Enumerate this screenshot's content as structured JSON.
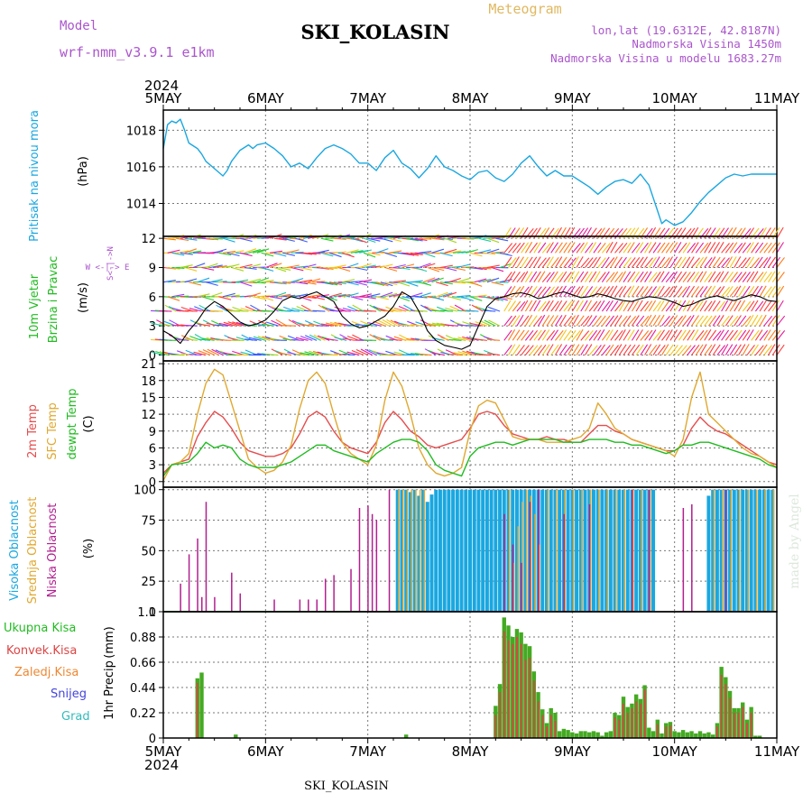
{
  "header": {
    "model_label": "Model",
    "model_name": "wrf-nmm_v3.9.1  e1km",
    "station": "SKI_KOLASIN",
    "chart_kind": "Meteogram",
    "lonlat": "lon,lat (19.6312E, 42.8187N)",
    "elevation": "Nadmorska Visina 1450m",
    "model_elevation": "Nadmorska Visina u modelu 1683.27m",
    "footer_station": "SKI_KOLASIN",
    "credit": "made by Angel"
  },
  "colors": {
    "pressure": "#1aa7e0",
    "temp": "#e64d4d",
    "sfc_temp": "#e0a830",
    "dewpoint": "#22bb22",
    "cloud_high": "#1aa7e0",
    "cloud_mid": "#e0a830",
    "cloud_low": "#b21f8f",
    "precip_total": "#44aa22",
    "precip_conv": "#dd4444",
    "precip_strat": "#ee8833",
    "snow": "#4444dd",
    "graupel": "#33bbbb",
    "wind_label": "#22bb22",
    "compass": "#aa55cc"
  },
  "chart_data": [
    {
      "id": "pressure",
      "type": "line",
      "ylabel_1": "Pritisak na nivou mora",
      "ylabel_unit": "(hPa)",
      "ylim": [
        1012.2,
        1019.1
      ],
      "yticks": [
        "1018",
        "1016",
        "1014"
      ],
      "ytick_values": [
        1018,
        1016,
        1014
      ],
      "x_range_hours": [
        0,
        144
      ],
      "x": [
        0,
        1,
        2,
        3,
        4,
        5,
        6,
        8,
        9,
        10,
        12,
        14,
        15,
        16,
        18,
        20,
        21,
        22,
        24,
        26,
        28,
        30,
        32,
        34,
        36,
        38,
        40,
        42,
        44,
        46,
        48,
        50,
        52,
        54,
        56,
        58,
        60,
        62,
        64,
        66,
        68,
        70,
        72,
        74,
        76,
        78,
        80,
        82,
        84,
        86,
        88,
        90,
        92,
        94,
        96,
        98,
        100,
        102,
        104,
        106,
        108,
        110,
        112,
        114,
        116,
        117,
        118,
        120,
        122,
        124,
        126,
        128,
        130,
        132,
        134,
        136,
        138,
        140,
        142,
        144
      ],
      "values": [
        1017.0,
        1018.3,
        1018.5,
        1018.4,
        1018.6,
        1018.0,
        1017.3,
        1017.0,
        1016.7,
        1016.3,
        1015.9,
        1015.5,
        1015.8,
        1016.3,
        1016.9,
        1017.2,
        1017.0,
        1017.2,
        1017.3,
        1017.0,
        1016.6,
        1016.0,
        1016.2,
        1015.9,
        1016.5,
        1017.0,
        1017.2,
        1017.0,
        1016.7,
        1016.2,
        1016.2,
        1015.8,
        1016.5,
        1016.9,
        1016.2,
        1015.9,
        1015.4,
        1015.9,
        1016.6,
        1016.0,
        1015.8,
        1015.5,
        1015.3,
        1015.7,
        1015.8,
        1015.4,
        1015.2,
        1015.6,
        1016.2,
        1016.6,
        1016.0,
        1015.5,
        1015.8,
        1015.5,
        1015.5,
        1015.2,
        1014.9,
        1014.5,
        1014.9,
        1015.2,
        1015.3,
        1015.1,
        1015.6,
        1015.0,
        1013.6,
        1012.9,
        1013.1,
        1012.8,
        1013.0,
        1013.5,
        1014.1,
        1014.6,
        1015.0,
        1015.4,
        1015.6,
        1015.5,
        1015.6,
        1015.6,
        1015.6,
        1015.6
      ]
    },
    {
      "id": "wind",
      "type": "line",
      "ylabel_1": "10m Vjetar",
      "ylabel_2": "Brzina i Pravac",
      "ylabel_unit": "(m/s)",
      "compass": "W <-|-> E",
      "compass_v": "S<-|->N",
      "ylim": [
        -0.6,
        12.2
      ],
      "yticks": [
        "12",
        "9",
        "6",
        "3",
        "0"
      ],
      "ytick_values": [
        12,
        9,
        6,
        3,
        0
      ],
      "speed_x": [
        0,
        2,
        4,
        6,
        8,
        10,
        12,
        14,
        16,
        18,
        20,
        22,
        24,
        26,
        28,
        30,
        32,
        34,
        36,
        38,
        40,
        42,
        44,
        46,
        48,
        50,
        52,
        54,
        56,
        58,
        60,
        62,
        64,
        66,
        68,
        70,
        72,
        74,
        76,
        78,
        80,
        82,
        84,
        86,
        88,
        90,
        92,
        94,
        96,
        98,
        100,
        102,
        104,
        106,
        108,
        110,
        112,
        114,
        116,
        118,
        120,
        122,
        124,
        126,
        128,
        130,
        132,
        134,
        136,
        138,
        140,
        142,
        144
      ],
      "speed_values": [
        2.5,
        2.0,
        1.2,
        2.5,
        3.5,
        4.8,
        5.5,
        5.0,
        4.2,
        3.4,
        3.0,
        3.2,
        3.6,
        4.5,
        5.6,
        6.0,
        5.8,
        6.2,
        6.5,
        6.0,
        5.5,
        4.0,
        3.2,
        2.8,
        3.0,
        3.5,
        4.0,
        5.0,
        6.5,
        6.0,
        4.5,
        2.5,
        1.5,
        1.0,
        0.8,
        0.6,
        1.0,
        3.0,
        5.0,
        5.8,
        6.0,
        6.3,
        6.4,
        6.2,
        5.8,
        6.0,
        6.3,
        6.5,
        6.2,
        5.9,
        6.0,
        6.3,
        6.1,
        5.8,
        5.6,
        5.5,
        5.8,
        6.0,
        5.9,
        5.7,
        5.4,
        5.0,
        5.2,
        5.6,
        5.9,
        6.1,
        5.8,
        5.6,
        5.9,
        6.2,
        6.0,
        5.6,
        5.5
      ]
    },
    {
      "id": "temperature",
      "type": "line",
      "ylabel_1": "2m Temp",
      "ylabel_2": "SFC Temp",
      "ylabel_3": "dewpt Temp",
      "ylabel_unit": "(C)",
      "ylim": [
        -1,
        21.5
      ],
      "yticks": [
        "21",
        "18",
        "15",
        "12",
        "9",
        "6",
        "3",
        "0"
      ],
      "ytick_values": [
        21,
        18,
        15,
        12,
        9,
        6,
        3,
        0
      ],
      "x": [
        0,
        2,
        4,
        6,
        8,
        10,
        12,
        14,
        16,
        18,
        20,
        22,
        24,
        26,
        28,
        30,
        32,
        34,
        36,
        38,
        40,
        42,
        44,
        46,
        48,
        50,
        52,
        54,
        56,
        58,
        60,
        62,
        64,
        66,
        68,
        70,
        72,
        74,
        76,
        78,
        80,
        82,
        84,
        86,
        88,
        90,
        92,
        94,
        96,
        98,
        100,
        102,
        104,
        106,
        108,
        110,
        112,
        114,
        116,
        118,
        120,
        122,
        124,
        126,
        128,
        130,
        132,
        134,
        136,
        138,
        140,
        142,
        144
      ],
      "series": [
        {
          "name": "2m Temp",
          "color_key": "temp",
          "values": [
            1.5,
            3.0,
            3.5,
            4.0,
            8.0,
            10.5,
            12.5,
            11.5,
            9.5,
            7.0,
            5.5,
            5.0,
            4.5,
            4.5,
            5.0,
            6.0,
            8.5,
            11.5,
            12.5,
            11.5,
            9.0,
            7.0,
            6.0,
            5.5,
            5.0,
            7.0,
            10.5,
            12.5,
            11.0,
            9.0,
            8.0,
            6.5,
            6.0,
            6.5,
            7.0,
            7.5,
            9.5,
            12.0,
            12.5,
            12.0,
            10.0,
            8.5,
            8.0,
            7.5,
            7.5,
            8.0,
            7.5,
            7.5,
            7.0,
            7.0,
            8.5,
            10.0,
            10.0,
            9.0,
            8.5,
            7.5,
            7.0,
            6.5,
            6.0,
            5.5,
            5.5,
            6.5,
            9.5,
            11.5,
            10.0,
            9.0,
            8.5,
            7.5,
            6.5,
            5.5,
            4.5,
            3.5,
            3.0
          ]
        },
        {
          "name": "SFC Temp",
          "color_key": "sfc_temp",
          "values": [
            0.2,
            3.0,
            3.5,
            5.0,
            12.0,
            17.5,
            20.0,
            19.0,
            14.0,
            9.0,
            4.0,
            2.5,
            1.5,
            2.0,
            3.5,
            6.5,
            13.0,
            18.0,
            19.5,
            17.5,
            12.0,
            7.0,
            5.0,
            4.0,
            3.0,
            6.5,
            14.5,
            19.5,
            17.0,
            12.0,
            6.0,
            3.0,
            1.5,
            1.0,
            1.5,
            2.5,
            9.0,
            13.5,
            14.5,
            14.0,
            11.0,
            8.0,
            7.5,
            7.5,
            7.5,
            7.0,
            7.0,
            7.0,
            7.5,
            8.0,
            9.5,
            14.0,
            12.0,
            9.5,
            8.5,
            7.5,
            7.0,
            6.5,
            6.0,
            5.5,
            4.5,
            7.5,
            15.0,
            19.5,
            12.0,
            10.5,
            9.0,
            7.5,
            6.0,
            5.0,
            4.5,
            3.5,
            2.5
          ]
        },
        {
          "name": "dewpt Temp",
          "color_key": "dewpoint",
          "values": [
            1.0,
            3.0,
            3.2,
            3.5,
            5.0,
            7.0,
            6.0,
            6.5,
            6.0,
            4.0,
            3.0,
            2.5,
            2.5,
            2.5,
            3.0,
            3.5,
            4.5,
            5.5,
            6.5,
            6.5,
            5.5,
            5.0,
            4.5,
            4.0,
            3.5,
            5.0,
            6.0,
            7.0,
            7.5,
            7.5,
            7.0,
            5.5,
            3.0,
            2.0,
            1.5,
            1.0,
            4.5,
            6.0,
            6.5,
            7.0,
            7.0,
            6.5,
            7.0,
            7.5,
            7.5,
            7.5,
            7.5,
            7.0,
            7.0,
            7.0,
            7.5,
            7.5,
            7.5,
            7.0,
            7.0,
            6.5,
            6.5,
            6.0,
            5.5,
            5.0,
            5.5,
            6.5,
            6.5,
            7.0,
            7.0,
            6.5,
            6.0,
            5.5,
            5.0,
            4.5,
            4.0,
            3.0,
            2.5
          ]
        }
      ]
    },
    {
      "id": "clouds",
      "type": "bar",
      "ylabel_1": "Visoka Oblacnost",
      "ylabel_2": "Srednja Oblacnost",
      "ylabel_3": "Niska Oblacnost",
      "ylabel_unit": "(%)",
      "ylim": [
        0,
        102
      ],
      "yticks": [
        "100",
        "75",
        "50",
        "25",
        "0"
      ],
      "ytick_values": [
        100,
        75,
        50,
        25,
        0
      ],
      "high_x": [
        55,
        56,
        57,
        58,
        59,
        60,
        61,
        62,
        63,
        64,
        65,
        66,
        67,
        68,
        69,
        70,
        71,
        72,
        73,
        74,
        75,
        76,
        77,
        78,
        79,
        80,
        81,
        82,
        83,
        84,
        85,
        86,
        87,
        88,
        89,
        90,
        91,
        92,
        93,
        94,
        95,
        96,
        97,
        98,
        99,
        100,
        101,
        102,
        103,
        104,
        105,
        106,
        107,
        108,
        109,
        110,
        111,
        112,
        113,
        114,
        115,
        128,
        129,
        130,
        131,
        132,
        133,
        134,
        135,
        136,
        137,
        138,
        139,
        140,
        141,
        142,
        143
      ],
      "high_values": [
        100,
        100,
        100,
        98,
        100,
        95,
        100,
        90,
        96,
        100,
        100,
        100,
        100,
        100,
        100,
        100,
        100,
        100,
        100,
        100,
        100,
        100,
        100,
        100,
        100,
        100,
        100,
        100,
        100,
        100,
        100,
        100,
        100,
        100,
        100,
        100,
        100,
        100,
        100,
        100,
        100,
        100,
        100,
        100,
        100,
        100,
        100,
        100,
        100,
        100,
        100,
        100,
        100,
        100,
        100,
        100,
        100,
        100,
        100,
        100,
        100,
        95,
        100,
        100,
        100,
        100,
        100,
        100,
        100,
        100,
        100,
        100,
        100,
        100,
        100,
        100,
        100
      ],
      "mid_x": [
        55,
        56,
        57,
        58,
        59,
        60,
        61,
        81,
        82,
        83,
        84,
        85,
        86,
        87,
        88,
        90,
        92,
        94,
        96,
        98,
        100,
        102,
        104,
        106,
        108,
        110,
        112,
        114,
        129,
        131,
        133,
        135,
        137,
        139,
        141,
        143
      ],
      "mid_values": [
        100,
        100,
        100,
        100,
        100,
        100,
        100,
        100,
        40,
        70,
        90,
        100,
        95,
        80,
        55,
        100,
        100,
        100,
        100,
        100,
        100,
        100,
        100,
        100,
        100,
        100,
        100,
        100,
        100,
        100,
        100,
        100,
        100,
        100,
        100,
        100
      ],
      "low_x": [
        4,
        6,
        8,
        9,
        10,
        12,
        16,
        18,
        26,
        32,
        34,
        36,
        38,
        40,
        44,
        46,
        48,
        49,
        50,
        53,
        80,
        82,
        84,
        86,
        88,
        94,
        100,
        110,
        114,
        122,
        124,
        132
      ],
      "low_values": [
        23,
        47,
        60,
        12,
        90,
        12,
        32,
        15,
        10,
        10,
        10,
        10,
        27,
        30,
        35,
        85,
        87,
        80,
        75,
        100,
        80,
        55,
        40,
        90,
        100,
        80,
        88,
        100,
        100,
        85,
        88,
        100
      ]
    },
    {
      "id": "precip",
      "type": "bar",
      "ylabel_1": "1hr Precip",
      "ylabel_unit": "(mm)",
      "ylim": [
        0,
        1.1
      ],
      "yticks": [
        "1.1",
        "0.88",
        "0.66",
        "0.44",
        "0.22",
        "0"
      ],
      "ytick_values": [
        1.1,
        0.88,
        0.66,
        0.44,
        0.22,
        0
      ],
      "legend": [
        "Ukupna Kisa",
        "Konvek.Kisa",
        "Zaledj.Kisa",
        "Snijeg",
        "Grad"
      ],
      "x": [
        8,
        9,
        17,
        57,
        78,
        79,
        80,
        81,
        82,
        83,
        84,
        85,
        86,
        87,
        88,
        89,
        90,
        91,
        92,
        93,
        94,
        95,
        96,
        97,
        98,
        99,
        100,
        101,
        102,
        103,
        104,
        105,
        106,
        107,
        108,
        109,
        110,
        111,
        112,
        113,
        114,
        115,
        116,
        117,
        118,
        119,
        120,
        121,
        122,
        123,
        124,
        125,
        126,
        127,
        128,
        129,
        130,
        131,
        132,
        133,
        134,
        135,
        136,
        137,
        138,
        139,
        140
      ],
      "total_values": [
        0.52,
        0.57,
        0.03,
        0.03,
        0.28,
        0.47,
        1.05,
        0.98,
        0.88,
        0.95,
        0.92,
        0.82,
        0.8,
        0.58,
        0.4,
        0.25,
        0.13,
        0.26,
        0.22,
        0.06,
        0.08,
        0.07,
        0.05,
        0.04,
        0.06,
        0.06,
        0.05,
        0.06,
        0.05,
        0.02,
        0.05,
        0.06,
        0.22,
        0.2,
        0.36,
        0.27,
        0.3,
        0.38,
        0.34,
        0.46,
        0.09,
        0.06,
        0.16,
        0.04,
        0.13,
        0.14,
        0.06,
        0.05,
        0.07,
        0.05,
        0.06,
        0.04,
        0.06,
        0.04,
        0.05,
        0.03,
        0.13,
        0.62,
        0.53,
        0.41,
        0.26,
        0.26,
        0.31,
        0.16,
        0.27,
        0.02,
        0.02
      ],
      "conv_values": [
        0.48,
        0.0,
        0.0,
        0.0,
        0.2,
        0.4,
        0.93,
        0.85,
        0.82,
        0.88,
        0.82,
        0.68,
        0.7,
        0.5,
        0.32,
        0.2,
        0.1,
        0.2,
        0.15,
        0.0,
        0.0,
        0.0,
        0.0,
        0.0,
        0.0,
        0.0,
        0.0,
        0.0,
        0.0,
        0.0,
        0.0,
        0.0,
        0.18,
        0.16,
        0.3,
        0.22,
        0.26,
        0.32,
        0.3,
        0.42,
        0.0,
        0.0,
        0.12,
        0.0,
        0.1,
        0.11,
        0.0,
        0.0,
        0.0,
        0.0,
        0.0,
        0.0,
        0.0,
        0.0,
        0.0,
        0.0,
        0.1,
        0.55,
        0.47,
        0.35,
        0.22,
        0.22,
        0.27,
        0.13,
        0.22,
        0.0,
        0.0
      ]
    }
  ],
  "time_axis": {
    "year_top": "2024",
    "year_bottom": "2024",
    "labels": [
      "5MAY",
      "6MAY",
      "7MAY",
      "8MAY",
      "9MAY",
      "10MAY",
      "11MAY"
    ]
  }
}
